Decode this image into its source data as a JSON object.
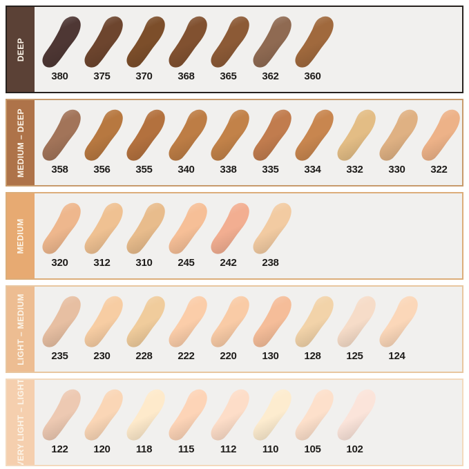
{
  "page": {
    "background": "#ffffff",
    "box_background": "#f1f0ee",
    "number_color": "#1e1c1a",
    "label_color": "#fcf5e9"
  },
  "chart_data": {
    "type": "table",
    "rows": [
      {
        "label": "DEEP",
        "sidebar_color": "#5b4136",
        "border_color": "#26211e",
        "shades": [
          {
            "code": "380",
            "color": "#4e3734"
          },
          {
            "code": "375",
            "color": "#6d452e"
          },
          {
            "code": "370",
            "color": "#7c4e2a"
          },
          {
            "code": "368",
            "color": "#815130"
          },
          {
            "code": "365",
            "color": "#8c5a36"
          },
          {
            "code": "362",
            "color": "#8f6a52"
          },
          {
            "code": "360",
            "color": "#a0693d"
          }
        ]
      },
      {
        "label": "MEDIUM – DEEP",
        "sidebar_color": "#ae7349",
        "border_color": "#c79a6b",
        "shades": [
          {
            "code": "358",
            "color": "#a27459"
          },
          {
            "code": "356",
            "color": "#b77840"
          },
          {
            "code": "355",
            "color": "#b3713e"
          },
          {
            "code": "340",
            "color": "#bd7d45"
          },
          {
            "code": "338",
            "color": "#c28249"
          },
          {
            "code": "335",
            "color": "#c17c4e"
          },
          {
            "code": "334",
            "color": "#c8864f"
          },
          {
            "code": "332",
            "color": "#e3bd85"
          },
          {
            "code": "330",
            "color": "#dfb183"
          },
          {
            "code": "322",
            "color": "#edb288"
          }
        ]
      },
      {
        "label": "MEDIUM",
        "sidebar_color": "#e7aa72",
        "border_color": "#dcad79",
        "shades": [
          {
            "code": "320",
            "color": "#eeb78d"
          },
          {
            "code": "312",
            "color": "#efc192"
          },
          {
            "code": "310",
            "color": "#e8bc8c"
          },
          {
            "code": "245",
            "color": "#f6bf97"
          },
          {
            "code": "242",
            "color": "#f2ae91"
          },
          {
            "code": "238",
            "color": "#f2cba2"
          }
        ]
      },
      {
        "label": "LIGHT – MEDIUM",
        "sidebar_color": "#edbd92",
        "border_color": "#e8c69f",
        "shades": [
          {
            "code": "235",
            "color": "#e7bfa2"
          },
          {
            "code": "230",
            "color": "#f7cda3"
          },
          {
            "code": "228",
            "color": "#f0cc9c"
          },
          {
            "code": "222",
            "color": "#fbcda9"
          },
          {
            "code": "220",
            "color": "#f9cba6"
          },
          {
            "code": "130",
            "color": "#f5bd99"
          },
          {
            "code": "128",
            "color": "#f2d3a9"
          },
          {
            "code": "125",
            "color": "#f6dcc8"
          },
          {
            "code": "124",
            "color": "#fbd7b9"
          }
        ]
      },
      {
        "label": "VERY LIGHT – LIGHT",
        "sidebar_color": "#f5cfae",
        "border_color": "#f3d9bd",
        "shades": [
          {
            "code": "122",
            "color": "#edc9b2"
          },
          {
            "code": "120",
            "color": "#fad6b6"
          },
          {
            "code": "118",
            "color": "#feeacb"
          },
          {
            "code": "115",
            "color": "#fdd4b7"
          },
          {
            "code": "112",
            "color": "#fdddc8"
          },
          {
            "code": "110",
            "color": "#fdeccf"
          },
          {
            "code": "105",
            "color": "#fde0cb"
          },
          {
            "code": "102",
            "color": "#fbe4da"
          }
        ]
      }
    ]
  }
}
